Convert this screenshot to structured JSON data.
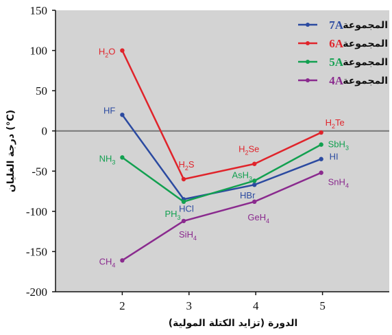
{
  "chart_data": {
    "type": "line",
    "title": "",
    "xlabel": "الدورة (تزايد الكتلة المولية)",
    "ylabel": "درجة الغليان (°C)",
    "x_ticks": [
      2,
      3,
      4,
      5
    ],
    "y_ticks": [
      150,
      100,
      50,
      0,
      -50,
      -100,
      -150,
      -200
    ],
    "xlim": [
      1,
      6
    ],
    "ylim": [
      -200,
      150
    ],
    "reference_line_y": 0,
    "legend_position": "top-right",
    "legend_word": "المجموعة",
    "series": [
      {
        "name": "7A",
        "color": "#2b4aa0",
        "points": [
          {
            "x": 2,
            "y": 20,
            "label": "HF"
          },
          {
            "x": 2.92,
            "y": -85,
            "label": "HCl"
          },
          {
            "x": 3.98,
            "y": -67,
            "label": "HBr"
          },
          {
            "x": 4.98,
            "y": -35,
            "label": "HI"
          }
        ]
      },
      {
        "name": "6A",
        "color": "#e0242b",
        "points": [
          {
            "x": 2,
            "y": 100,
            "label": "H2O",
            "label_main": "H",
            "label_sub": "2",
            "label_tail": "O"
          },
          {
            "x": 2.92,
            "y": -60,
            "label": "H2S",
            "label_main": "H",
            "label_sub": "2",
            "label_tail": "S"
          },
          {
            "x": 3.98,
            "y": -41,
            "label": "H2Se",
            "label_main": "H",
            "label_sub": "2",
            "label_tail": "Se"
          },
          {
            "x": 4.98,
            "y": -2,
            "label": "H2Te",
            "label_main": "H",
            "label_sub": "2",
            "label_tail": "Te"
          }
        ]
      },
      {
        "name": "5A",
        "color": "#12a050",
        "points": [
          {
            "x": 2,
            "y": -33,
            "label": "NH3",
            "label_main": "NH",
            "label_sub": "3",
            "label_tail": ""
          },
          {
            "x": 2.92,
            "y": -88,
            "label": "PH3",
            "label_main": "PH",
            "label_sub": "3",
            "label_tail": ""
          },
          {
            "x": 3.98,
            "y": -62,
            "label": "AsH3",
            "label_main": "AsH",
            "label_sub": "3",
            "label_tail": ""
          },
          {
            "x": 4.98,
            "y": -17,
            "label": "SbH3",
            "label_main": "SbH",
            "label_sub": "3",
            "label_tail": ""
          }
        ]
      },
      {
        "name": "4A",
        "color": "#8a2a8e",
        "points": [
          {
            "x": 2,
            "y": -161,
            "label": "CH4",
            "label_main": "CH",
            "label_sub": "4",
            "label_tail": ""
          },
          {
            "x": 2.92,
            "y": -112,
            "label": "SiH4",
            "label_main": "SiH",
            "label_sub": "4",
            "label_tail": ""
          },
          {
            "x": 3.98,
            "y": -88,
            "label": "GeH4",
            "label_main": "GeH",
            "label_sub": "4",
            "label_tail": ""
          },
          {
            "x": 4.98,
            "y": -52,
            "label": "SnH4",
            "label_main": "SnH",
            "label_sub": "4",
            "label_tail": ""
          }
        ]
      }
    ]
  },
  "colors": {
    "plot_background": "#d3d3d3",
    "axis": "#111111",
    "reference_line": "#777777"
  }
}
